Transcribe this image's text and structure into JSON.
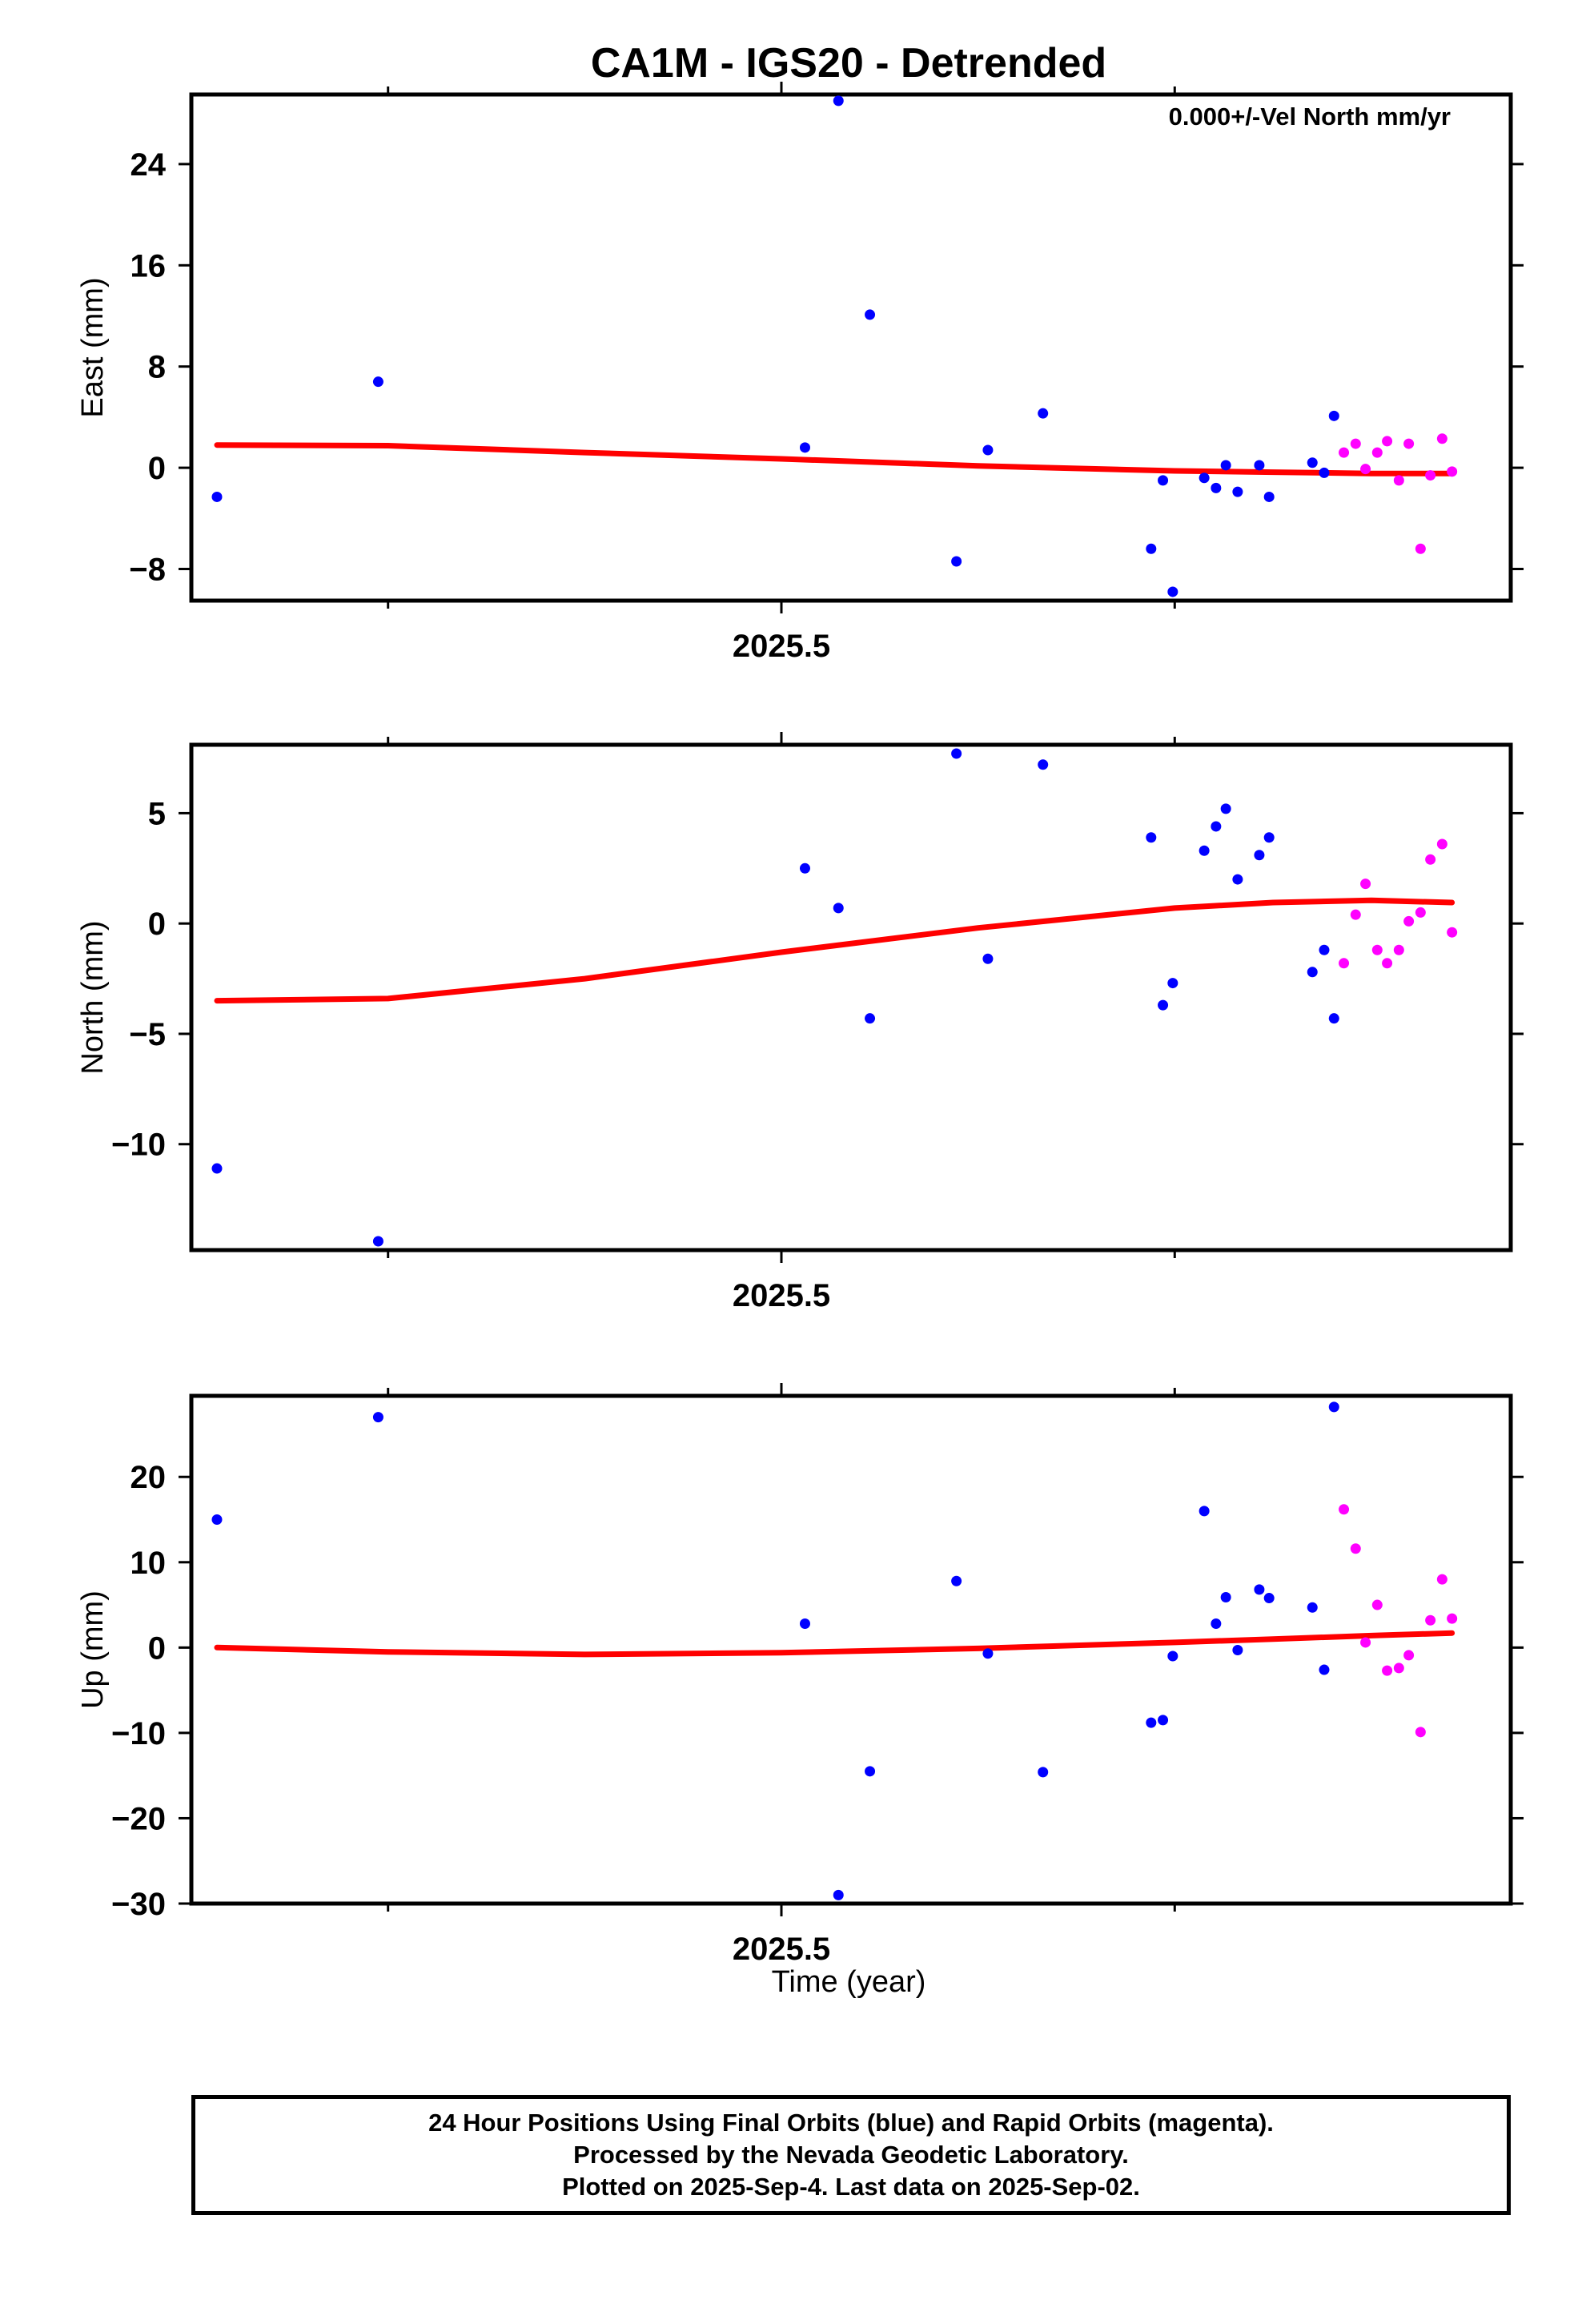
{
  "title": "CA1M - IGS20 - Detrended",
  "annotation": "0.000+/-Vel North mm/yr",
  "xlabel": "Time (year)",
  "footer": {
    "line1": "24 Hour Positions Using Final Orbits (blue) and Rapid Orbits (magenta).",
    "line2": "Processed by the Nevada Geodetic Laboratory.",
    "line3": "Plotted on 2025-Sep-4. Last data on 2025-Sep-02."
  },
  "colors": {
    "final": "#0000ff",
    "rapid": "#ff00ff",
    "fit": "#ff0000"
  },
  "chart_data": [
    {
      "type": "scatter",
      "name": "east",
      "ylabel": "East (mm)",
      "xlim": [
        2025.2,
        2025.82
      ],
      "ylim": [
        -10.5,
        29.5
      ],
      "xticks": [
        2025.5
      ],
      "xtick_labels": [
        "2025.5"
      ],
      "ymajor": [
        24,
        16,
        8,
        0,
        -8
      ],
      "ytick_labels": [
        "24",
        "16",
        "8",
        "0",
        "−8"
      ],
      "annotation": "0.000+/-Vel North mm/yr",
      "final": [
        [
          2025.213,
          -2.3
        ],
        [
          2025.295,
          6.8
        ],
        [
          2025.512,
          1.6
        ],
        [
          2025.529,
          29
        ],
        [
          2025.545,
          12.1
        ],
        [
          2025.589,
          -7.4
        ],
        [
          2025.605,
          1.4
        ],
        [
          2025.633,
          4.3
        ],
        [
          2025.688,
          -6.4
        ],
        [
          2025.694,
          -1.0
        ],
        [
          2025.699,
          -9.8
        ],
        [
          2025.715,
          -0.8
        ],
        [
          2025.721,
          -1.6
        ],
        [
          2025.726,
          0.2
        ],
        [
          2025.732,
          -1.9
        ],
        [
          2025.743,
          0.2
        ],
        [
          2025.748,
          -2.3
        ],
        [
          2025.77,
          0.4
        ],
        [
          2025.776,
          -0.4
        ],
        [
          2025.781,
          4.1
        ]
      ],
      "rapid": [
        [
          2025.786,
          1.2
        ],
        [
          2025.792,
          1.9
        ],
        [
          2025.797,
          -0.1
        ],
        [
          2025.803,
          1.2
        ],
        [
          2025.808,
          2.1
        ],
        [
          2025.814,
          -1.0
        ],
        [
          2025.819,
          1.9
        ],
        [
          2025.825,
          -6.4
        ],
        [
          2025.83,
          -0.6
        ],
        [
          2025.836,
          2.3
        ],
        [
          2025.841,
          -0.3
        ]
      ],
      "fit": [
        [
          2025.213,
          1.8
        ],
        [
          2025.3,
          1.75
        ],
        [
          2025.4,
          1.2
        ],
        [
          2025.5,
          0.7
        ],
        [
          2025.6,
          0.15
        ],
        [
          2025.7,
          -0.25
        ],
        [
          2025.75,
          -0.35
        ],
        [
          2025.8,
          -0.45
        ],
        [
          2025.841,
          -0.45
        ]
      ]
    },
    {
      "type": "scatter",
      "name": "north",
      "ylabel": "North (mm)",
      "xlim": [
        2025.2,
        2025.82
      ],
      "ylim": [
        -14.8,
        8.1
      ],
      "xticks": [
        2025.5
      ],
      "xtick_labels": [
        "2025.5"
      ],
      "ymajor": [
        5,
        0,
        -5,
        -10
      ],
      "ytick_labels": [
        "5",
        "0",
        "−5",
        "−10"
      ],
      "final": [
        [
          2025.213,
          -11.1
        ],
        [
          2025.295,
          -14.4
        ],
        [
          2025.512,
          2.5
        ],
        [
          2025.529,
          0.7
        ],
        [
          2025.545,
          -4.3
        ],
        [
          2025.589,
          7.7
        ],
        [
          2025.605,
          -1.6
        ],
        [
          2025.633,
          7.2
        ],
        [
          2025.688,
          3.9
        ],
        [
          2025.694,
          -3.7
        ],
        [
          2025.699,
          -2.7
        ],
        [
          2025.715,
          3.3
        ],
        [
          2025.721,
          4.4
        ],
        [
          2025.726,
          5.2
        ],
        [
          2025.732,
          2.0
        ],
        [
          2025.743,
          3.1
        ],
        [
          2025.748,
          3.9
        ],
        [
          2025.77,
          -2.2
        ],
        [
          2025.776,
          -1.2
        ],
        [
          2025.781,
          -4.3
        ]
      ],
      "rapid": [
        [
          2025.786,
          -1.8
        ],
        [
          2025.792,
          0.4
        ],
        [
          2025.797,
          1.8
        ],
        [
          2025.803,
          -1.2
        ],
        [
          2025.808,
          -1.8
        ],
        [
          2025.814,
          -1.2
        ],
        [
          2025.819,
          0.1
        ],
        [
          2025.825,
          0.5
        ],
        [
          2025.83,
          2.9
        ],
        [
          2025.836,
          3.6
        ],
        [
          2025.841,
          -0.4
        ]
      ],
      "fit": [
        [
          2025.213,
          -3.5
        ],
        [
          2025.3,
          -3.4
        ],
        [
          2025.4,
          -2.5
        ],
        [
          2025.5,
          -1.3
        ],
        [
          2025.6,
          -0.2
        ],
        [
          2025.7,
          0.7
        ],
        [
          2025.75,
          0.95
        ],
        [
          2025.8,
          1.05
        ],
        [
          2025.841,
          0.95
        ]
      ]
    },
    {
      "type": "scatter",
      "name": "up",
      "ylabel": "Up (mm)",
      "xlim": [
        2025.2,
        2025.82
      ],
      "ylim": [
        -30,
        29.5
      ],
      "xticks": [
        2025.5
      ],
      "xtick_labels": [
        "2025.5"
      ],
      "ymajor": [
        20,
        10,
        0,
        -10,
        -20,
        -30
      ],
      "ytick_labels": [
        "20",
        "10",
        "0",
        "−10",
        "−20",
        "−30"
      ],
      "final": [
        [
          2025.213,
          15
        ],
        [
          2025.295,
          27
        ],
        [
          2025.512,
          2.8
        ],
        [
          2025.529,
          -29
        ],
        [
          2025.545,
          -14.5
        ],
        [
          2025.589,
          7.8
        ],
        [
          2025.605,
          -0.7
        ],
        [
          2025.633,
          -14.6
        ],
        [
          2025.688,
          -8.8
        ],
        [
          2025.694,
          -8.5
        ],
        [
          2025.699,
          -1
        ],
        [
          2025.715,
          16
        ],
        [
          2025.721,
          2.8
        ],
        [
          2025.726,
          5.9
        ],
        [
          2025.732,
          -0.3
        ],
        [
          2025.743,
          6.8
        ],
        [
          2025.748,
          5.8
        ],
        [
          2025.77,
          4.7
        ],
        [
          2025.776,
          -2.6
        ],
        [
          2025.781,
          28.2
        ]
      ],
      "rapid": [
        [
          2025.786,
          16.2
        ],
        [
          2025.792,
          11.6
        ],
        [
          2025.797,
          0.6
        ],
        [
          2025.803,
          5.0
        ],
        [
          2025.808,
          -2.7
        ],
        [
          2025.814,
          -2.4
        ],
        [
          2025.819,
          -0.9
        ],
        [
          2025.825,
          -9.9
        ],
        [
          2025.83,
          3.2
        ],
        [
          2025.836,
          8.0
        ],
        [
          2025.841,
          3.4
        ]
      ],
      "fit": [
        [
          2025.213,
          0
        ],
        [
          2025.3,
          -0.5
        ],
        [
          2025.4,
          -0.8
        ],
        [
          2025.5,
          -0.6
        ],
        [
          2025.6,
          -0.1
        ],
        [
          2025.7,
          0.6
        ],
        [
          2025.75,
          1.0
        ],
        [
          2025.8,
          1.4
        ],
        [
          2025.841,
          1.7
        ]
      ]
    }
  ]
}
